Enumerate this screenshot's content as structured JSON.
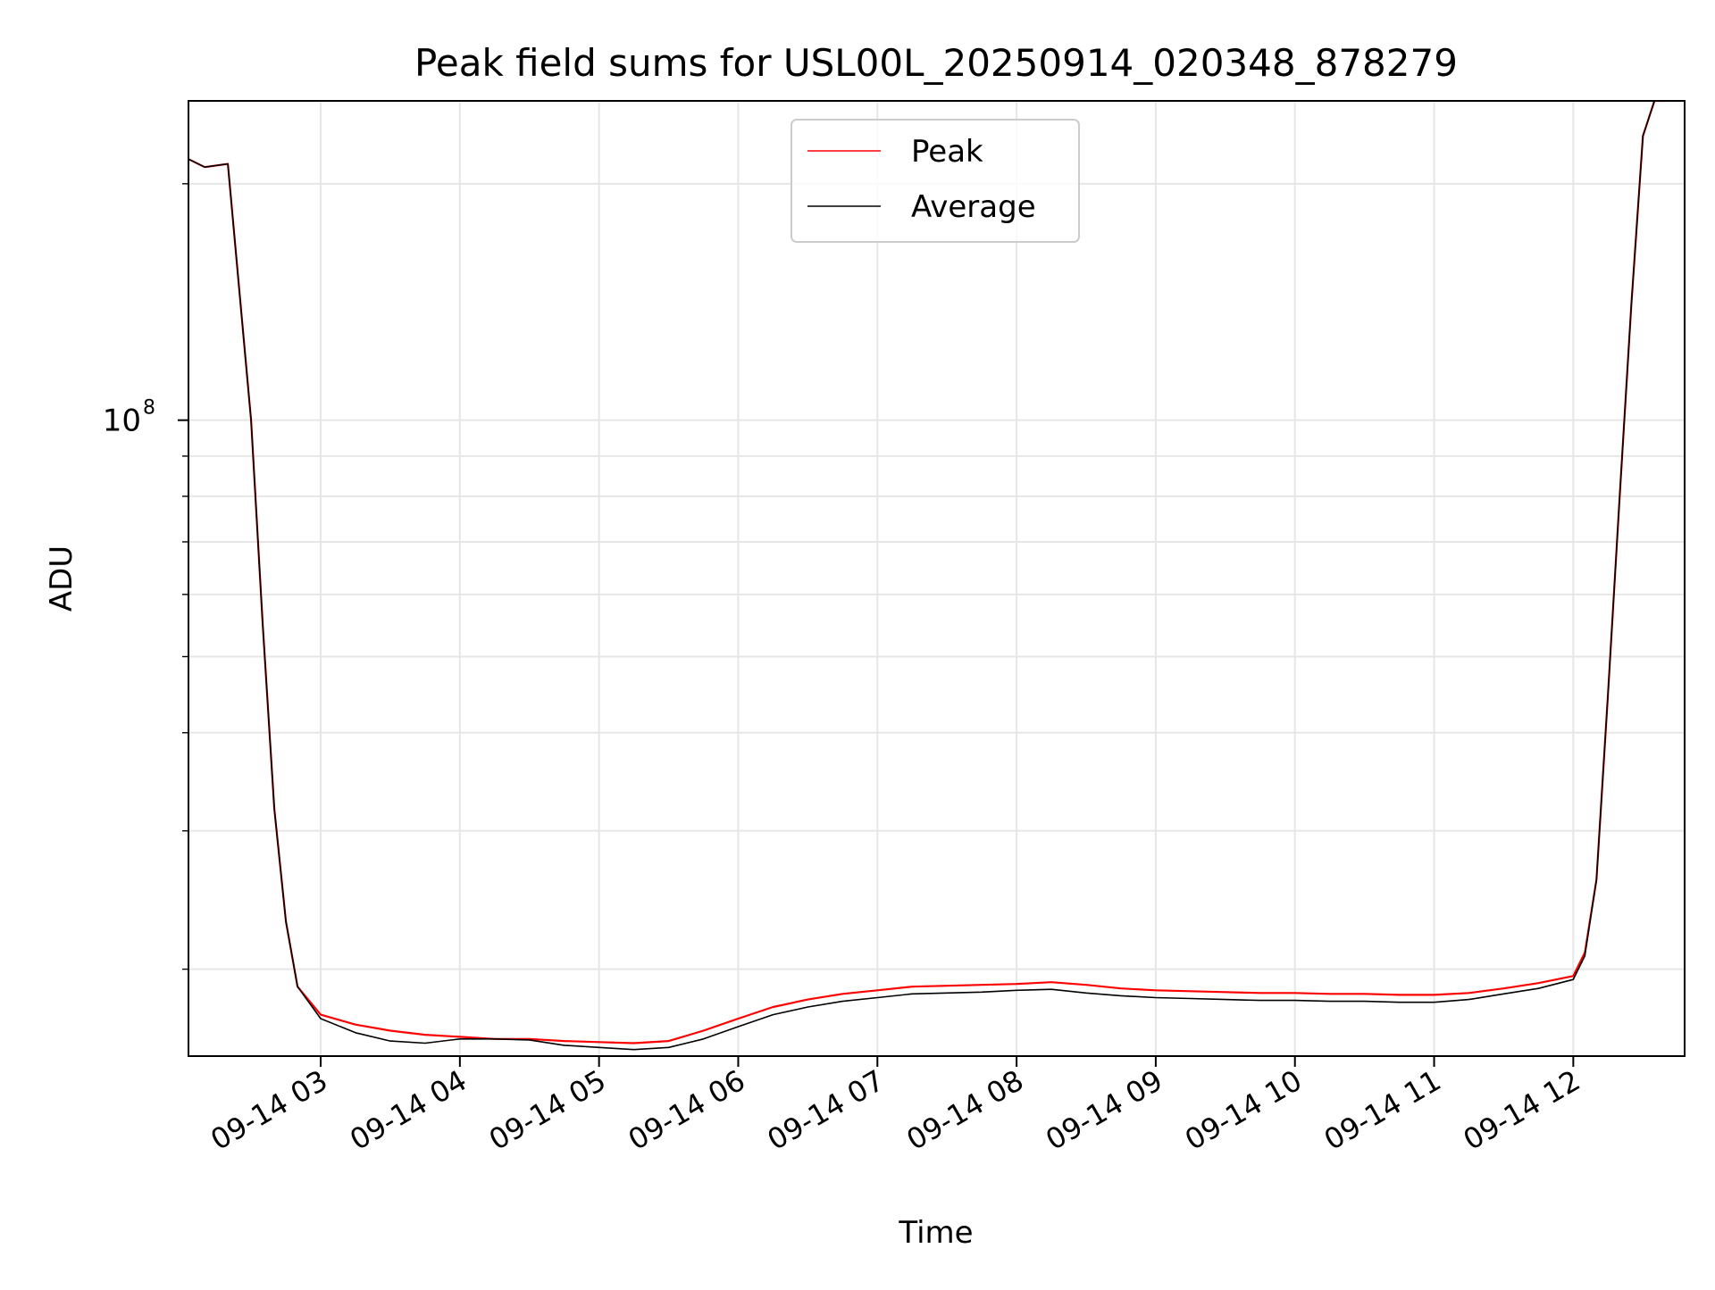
{
  "chart_data": {
    "type": "line",
    "title": "Peak field sums for USL00L_20250914_020348_878279",
    "xlabel": "Time",
    "ylabel": "ADU",
    "y_scale": "log",
    "ylim": [
      15500000,
      255000000
    ],
    "xlim": [
      "2025-09-14 02:03",
      "2025-09-14 12:48"
    ],
    "grid": true,
    "legend_position": "top-center",
    "x_ticks": [
      {
        "label": "09-14 03",
        "value": "2025-09-14 03:00"
      },
      {
        "label": "09-14 04",
        "value": "2025-09-14 04:00"
      },
      {
        "label": "09-14 05",
        "value": "2025-09-14 05:00"
      },
      {
        "label": "09-14 06",
        "value": "2025-09-14 06:00"
      },
      {
        "label": "09-14 07",
        "value": "2025-09-14 07:00"
      },
      {
        "label": "09-14 08",
        "value": "2025-09-14 08:00"
      },
      {
        "label": "09-14 09",
        "value": "2025-09-14 09:00"
      },
      {
        "label": "09-14 10",
        "value": "2025-09-14 10:00"
      },
      {
        "label": "09-14 11",
        "value": "2025-09-14 11:00"
      },
      {
        "label": "09-14 12",
        "value": "2025-09-14 12:00"
      }
    ],
    "y_ticks": [
      {
        "base": "10",
        "exponent": "8",
        "value": 100000000
      }
    ],
    "series": [
      {
        "name": "Peak",
        "color": "#ff0000",
        "x": [
          "2025-09-14 02:03",
          "2025-09-14 02:10",
          "2025-09-14 02:20",
          "2025-09-14 02:30",
          "2025-09-14 02:35",
          "2025-09-14 02:40",
          "2025-09-14 02:45",
          "2025-09-14 02:50",
          "2025-09-14 03:00",
          "2025-09-14 03:15",
          "2025-09-14 03:30",
          "2025-09-14 03:45",
          "2025-09-14 04:00",
          "2025-09-14 04:15",
          "2025-09-14 04:30",
          "2025-09-14 04:45",
          "2025-09-14 05:00",
          "2025-09-14 05:15",
          "2025-09-14 05:30",
          "2025-09-14 05:45",
          "2025-09-14 06:00",
          "2025-09-14 06:15",
          "2025-09-14 06:30",
          "2025-09-14 06:45",
          "2025-09-14 07:00",
          "2025-09-14 07:15",
          "2025-09-14 07:30",
          "2025-09-14 07:45",
          "2025-09-14 08:00",
          "2025-09-14 08:15",
          "2025-09-14 08:30",
          "2025-09-14 08:45",
          "2025-09-14 09:00",
          "2025-09-14 09:15",
          "2025-09-14 09:30",
          "2025-09-14 09:45",
          "2025-09-14 10:00",
          "2025-09-14 10:15",
          "2025-09-14 10:30",
          "2025-09-14 10:45",
          "2025-09-14 11:00",
          "2025-09-14 11:15",
          "2025-09-14 11:30",
          "2025-09-14 11:45",
          "2025-09-14 12:00",
          "2025-09-14 12:05",
          "2025-09-14 12:10",
          "2025-09-14 12:15",
          "2025-09-14 12:20",
          "2025-09-14 12:25",
          "2025-09-14 12:30",
          "2025-09-14 12:35",
          "2025-09-14 12:40"
        ],
        "values": [
          215000000,
          210000000,
          212000000,
          100000000,
          55000000,
          32000000,
          23000000,
          19000000,
          17500000,
          17000000,
          16700000,
          16500000,
          16400000,
          16300000,
          16300000,
          16200000,
          16150000,
          16100000,
          16200000,
          16700000,
          17300000,
          17900000,
          18300000,
          18600000,
          18800000,
          19000000,
          19050000,
          19100000,
          19150000,
          19250000,
          19100000,
          18900000,
          18800000,
          18750000,
          18700000,
          18650000,
          18650000,
          18600000,
          18600000,
          18550000,
          18550000,
          18650000,
          18900000,
          19200000,
          19600000,
          21000000,
          26000000,
          45000000,
          80000000,
          140000000,
          230000000,
          255000000,
          255000000
        ]
      },
      {
        "name": "Average",
        "color": "#000000",
        "x": [
          "2025-09-14 02:03",
          "2025-09-14 02:10",
          "2025-09-14 02:20",
          "2025-09-14 02:30",
          "2025-09-14 02:35",
          "2025-09-14 02:40",
          "2025-09-14 02:45",
          "2025-09-14 02:50",
          "2025-09-14 03:00",
          "2025-09-14 03:15",
          "2025-09-14 03:30",
          "2025-09-14 03:45",
          "2025-09-14 04:00",
          "2025-09-14 04:15",
          "2025-09-14 04:30",
          "2025-09-14 04:45",
          "2025-09-14 05:00",
          "2025-09-14 05:15",
          "2025-09-14 05:30",
          "2025-09-14 05:45",
          "2025-09-14 06:00",
          "2025-09-14 06:15",
          "2025-09-14 06:30",
          "2025-09-14 06:45",
          "2025-09-14 07:00",
          "2025-09-14 07:15",
          "2025-09-14 07:30",
          "2025-09-14 07:45",
          "2025-09-14 08:00",
          "2025-09-14 08:15",
          "2025-09-14 08:30",
          "2025-09-14 08:45",
          "2025-09-14 09:00",
          "2025-09-14 09:15",
          "2025-09-14 09:30",
          "2025-09-14 09:45",
          "2025-09-14 10:00",
          "2025-09-14 10:15",
          "2025-09-14 10:30",
          "2025-09-14 10:45",
          "2025-09-14 11:00",
          "2025-09-14 11:15",
          "2025-09-14 11:30",
          "2025-09-14 11:45",
          "2025-09-14 12:00",
          "2025-09-14 12:05",
          "2025-09-14 12:10",
          "2025-09-14 12:15",
          "2025-09-14 12:20",
          "2025-09-14 12:25",
          "2025-09-14 12:30",
          "2025-09-14 12:35",
          "2025-09-14 12:40"
        ],
        "values": [
          215000000,
          210000000,
          212000000,
          100000000,
          55000000,
          32000000,
          23000000,
          19000000,
          17300000,
          16600000,
          16200000,
          16100000,
          16300000,
          16300000,
          16250000,
          16000000,
          15900000,
          15800000,
          15900000,
          16300000,
          16900000,
          17500000,
          17900000,
          18200000,
          18400000,
          18600000,
          18650000,
          18700000,
          18800000,
          18850000,
          18650000,
          18500000,
          18400000,
          18350000,
          18300000,
          18250000,
          18250000,
          18200000,
          18200000,
          18150000,
          18150000,
          18300000,
          18600000,
          18900000,
          19400000,
          20800000,
          26000000,
          45000000,
          80000000,
          140000000,
          230000000,
          255000000,
          255000000
        ]
      }
    ]
  }
}
